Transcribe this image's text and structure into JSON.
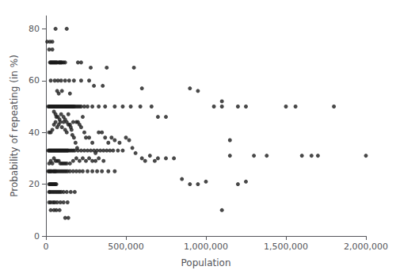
{
  "chart_data": {
    "type": "scatter",
    "xlabel": "Population",
    "ylabel": "Probability of repeating (in %)",
    "xlim": [
      0,
      2000000
    ],
    "ylim": [
      0,
      85
    ],
    "xticks": [
      0,
      {
        "value": 500000,
        "label": "500,000"
      },
      {
        "value": 1000000,
        "label": "1,000,000"
      },
      {
        "value": 1500000,
        "label": "1,500,000"
      },
      {
        "value": 2000000,
        "label": "2,000,000"
      }
    ],
    "yticks": [
      0,
      20,
      40,
      60,
      80
    ],
    "color": "#1a1a1a",
    "grid": false,
    "x": [
      8000,
      25000,
      40000,
      60000,
      130000,
      20000,
      40000,
      25000,
      30000,
      35000,
      40000,
      45000,
      50000,
      55000,
      60000,
      65000,
      70000,
      80000,
      85000,
      90000,
      95000,
      100000,
      110000,
      120000,
      200000,
      220000,
      280000,
      380000,
      30000,
      55000,
      75000,
      95000,
      120000,
      145000,
      175000,
      220000,
      270000,
      300000,
      355000,
      70000,
      100000,
      80000,
      150000,
      15000,
      20000,
      25000,
      30000,
      35000,
      40000,
      45000,
      50000,
      55000,
      60000,
      65000,
      70000,
      75000,
      80000,
      85000,
      90000,
      95000,
      100000,
      105000,
      110000,
      115000,
      120000,
      125000,
      130000,
      135000,
      140000,
      145000,
      150000,
      155000,
      160000,
      165000,
      170000,
      175000,
      180000,
      190000,
      200000,
      210000,
      220000,
      240000,
      260000,
      290000,
      330000,
      370000,
      430000,
      480000,
      530000,
      590000,
      660000,
      750000,
      1050000,
      1100000,
      1500000,
      1560000,
      1800000,
      60000,
      75000,
      85000,
      95000,
      110000,
      120000,
      130000,
      140000,
      50000,
      65000,
      170000,
      190000,
      200000,
      210000,
      220000,
      230000,
      240000,
      150000,
      160000,
      165000,
      175000,
      185000,
      195000,
      100000,
      110000,
      120000,
      130000,
      140000,
      155000,
      20000,
      30000,
      40000,
      50000,
      60000,
      70000,
      80000,
      90000,
      250000,
      270000,
      290000,
      310000,
      330000,
      350000,
      370000,
      390000,
      410000,
      430000,
      460000,
      500000,
      520000,
      540000,
      560000,
      600000,
      620000,
      650000,
      680000,
      700000,
      750000,
      800000,
      900000,
      950000,
      850000,
      900000,
      950000,
      1000000,
      1100000,
      1200000,
      1250000,
      1150000,
      1300000,
      1380000,
      1600000,
      1660000,
      1700000,
      2000000,
      15000,
      20000,
      25000,
      30000,
      35000,
      40000,
      45000,
      50000,
      55000,
      60000,
      65000,
      70000,
      75000,
      80000,
      85000,
      90000,
      95000,
      100000,
      105000,
      110000,
      115000,
      120000,
      125000,
      130000,
      135000,
      140000,
      150000,
      160000,
      170000,
      180000,
      200000,
      220000,
      240000,
      260000,
      280000,
      300000,
      320000,
      340000,
      360000,
      380000,
      400000,
      420000,
      450000,
      480000,
      20000,
      30000,
      40000,
      50000,
      60000,
      70000,
      80000,
      90000,
      100000,
      110000,
      120000,
      130000,
      150000,
      170000,
      190000,
      210000,
      230000,
      250000,
      270000,
      290000,
      310000,
      330000,
      360000,
      15000,
      20000,
      25000,
      30000,
      35000,
      45000,
      50000,
      55000,
      60000,
      65000,
      75000,
      85000,
      95000,
      105000,
      115000,
      125000,
      135000,
      150000,
      170000,
      190000,
      210000,
      230000,
      260000,
      290000,
      320000,
      350000,
      390000,
      430000,
      20000,
      25000,
      30000,
      35000,
      40000,
      45000,
      50000,
      55000,
      60000,
      65000,
      20000,
      25000,
      35000,
      45000,
      55000,
      65000,
      75000,
      85000,
      95000,
      110000,
      130000,
      155000,
      180000,
      20000,
      30000,
      45000,
      55000,
      70000,
      90000,
      110000,
      135000,
      30000,
      50000,
      65000,
      85000,
      120000,
      140000,
      1200000,
      1250000,
      1100000,
      550000,
      600000,
      700000,
      1150000
    ],
    "values": [
      75,
      75,
      75,
      80,
      80,
      72,
      72,
      67,
      67,
      67,
      67,
      67,
      67,
      67,
      67,
      67,
      67,
      67,
      67,
      67,
      67,
      67,
      67,
      67,
      67,
      67,
      65,
      65,
      60,
      60,
      60,
      60,
      60,
      60,
      60,
      60,
      60,
      58,
      58,
      56,
      56,
      55,
      55,
      50,
      50,
      50,
      50,
      50,
      50,
      50,
      50,
      50,
      50,
      50,
      50,
      50,
      50,
      50,
      50,
      50,
      50,
      50,
      50,
      50,
      50,
      50,
      50,
      50,
      50,
      50,
      50,
      50,
      50,
      50,
      50,
      50,
      50,
      50,
      50,
      50,
      50,
      50,
      50,
      50,
      50,
      50,
      50,
      50,
      50,
      50,
      50,
      46,
      50,
      50,
      50,
      50,
      50,
      47,
      46,
      45,
      47,
      46,
      45,
      44,
      47,
      48,
      46,
      44,
      44,
      44,
      43,
      42,
      46,
      40,
      43,
      41,
      39,
      38,
      36,
      34,
      42,
      44,
      41,
      40,
      43,
      42,
      40,
      40,
      41,
      43,
      44,
      42,
      43,
      44,
      38,
      38,
      36,
      32,
      40,
      40,
      38,
      36,
      38,
      37,
      36,
      38,
      37,
      34,
      32,
      30,
      29,
      31,
      29,
      30,
      30,
      30,
      57,
      56,
      22,
      20,
      20,
      21,
      10,
      20,
      21,
      37,
      31,
      31,
      31,
      31,
      31,
      31,
      33,
      33,
      33,
      33,
      33,
      33,
      33,
      33,
      33,
      33,
      33,
      33,
      33,
      33,
      33,
      33,
      33,
      33,
      33,
      33,
      33,
      33,
      33,
      33,
      33,
      33,
      33,
      33,
      33,
      33,
      33,
      33,
      33,
      33,
      33,
      33,
      33,
      33,
      33,
      33,
      33,
      33,
      33,
      33,
      28,
      29,
      28,
      30,
      29,
      29,
      29,
      28,
      28,
      28,
      28,
      28,
      28,
      29,
      30,
      29,
      30,
      29,
      30,
      29,
      29,
      30,
      29,
      25,
      25,
      25,
      25,
      25,
      25,
      25,
      25,
      25,
      25,
      25,
      25,
      25,
      25,
      25,
      25,
      25,
      25,
      25,
      25,
      25,
      25,
      25,
      25,
      25,
      25,
      25,
      25,
      20,
      20,
      20,
      20,
      20,
      20,
      20,
      20,
      20,
      20,
      17,
      17,
      17,
      17,
      17,
      17,
      17,
      17,
      17,
      17,
      17,
      17,
      17,
      13,
      13,
      13,
      13,
      13,
      13,
      13,
      13,
      10,
      10,
      10,
      10,
      7,
      7,
      50,
      50,
      52,
      65,
      57,
      46,
      31
    ]
  }
}
